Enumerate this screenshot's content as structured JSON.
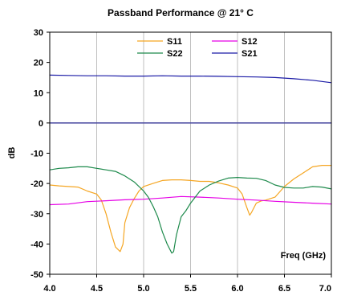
{
  "chart_data": {
    "type": "line",
    "title": "Passband Performance @ 21° C",
    "xlabel": "Freq (GHz)",
    "ylabel": "dB",
    "xlim": [
      4.0,
      7.0
    ],
    "ylim": [
      -50,
      30
    ],
    "x_ticks": [
      "4.0",
      "4.5",
      "5.0",
      "5.5",
      "6.0",
      "6.5",
      "7.0"
    ],
    "y_ticks": [
      "30",
      "20",
      "10",
      "0",
      "-10",
      "-20",
      "-30",
      "-40",
      "-50"
    ],
    "grid": "vertical",
    "legend_position": "top",
    "series": [
      {
        "name": "S11",
        "color": "#f5a623",
        "x": [
          4.0,
          4.1,
          4.2,
          4.3,
          4.4,
          4.5,
          4.55,
          4.6,
          4.65,
          4.7,
          4.75,
          4.78,
          4.8,
          4.85,
          4.9,
          4.95,
          5.0,
          5.1,
          5.2,
          5.3,
          5.4,
          5.5,
          5.6,
          5.7,
          5.8,
          5.9,
          6.0,
          6.05,
          6.1,
          6.13,
          6.15,
          6.2,
          6.25,
          6.3,
          6.4,
          6.5,
          6.6,
          6.7,
          6.8,
          6.9,
          7.0
        ],
        "values": [
          -20.5,
          -20.8,
          -21.0,
          -21.2,
          -22.5,
          -23.5,
          -25.5,
          -30,
          -36,
          -41,
          -42.5,
          -40,
          -33,
          -28,
          -25,
          -22.5,
          -21,
          -20,
          -19,
          -18.8,
          -18.8,
          -19,
          -19.3,
          -19.3,
          -19.8,
          -20.5,
          -21.5,
          -23.5,
          -28,
          -30.5,
          -29.5,
          -26.5,
          -25.8,
          -25.5,
          -24.5,
          -21,
          -18.5,
          -16.5,
          -14.5,
          -14.0,
          -14.0
        ]
      },
      {
        "name": "S12",
        "color": "#e600e6",
        "x": [
          4.0,
          4.2,
          4.4,
          4.6,
          4.8,
          5.0,
          5.2,
          5.4,
          5.6,
          5.8,
          6.0,
          6.2,
          6.4,
          6.6,
          6.8,
          7.0
        ],
        "values": [
          -27.0,
          -26.8,
          -26.0,
          -25.7,
          -25.4,
          -25.2,
          -24.8,
          -24.3,
          -24.5,
          -24.8,
          -25.2,
          -25.5,
          -25.9,
          -26.2,
          -26.5,
          -26.8
        ]
      },
      {
        "name": "S22",
        "color": "#1e8a4c",
        "x": [
          4.0,
          4.1,
          4.2,
          4.3,
          4.4,
          4.5,
          4.6,
          4.7,
          4.8,
          4.9,
          5.0,
          5.05,
          5.1,
          5.15,
          5.2,
          5.25,
          5.3,
          5.32,
          5.35,
          5.4,
          5.45,
          5.5,
          5.6,
          5.7,
          5.8,
          5.9,
          6.0,
          6.1,
          6.2,
          6.3,
          6.4,
          6.5,
          6.6,
          6.7,
          6.8,
          6.9,
          7.0
        ],
        "values": [
          -15.5,
          -15.0,
          -14.8,
          -14.5,
          -14.5,
          -15.0,
          -15.5,
          -16.0,
          -17.5,
          -19.5,
          -22.5,
          -24.5,
          -27.5,
          -31,
          -36,
          -40,
          -43,
          -42.5,
          -37,
          -31,
          -29,
          -26.5,
          -22.5,
          -20.5,
          -19.2,
          -18.2,
          -18.0,
          -18.2,
          -18.3,
          -19.0,
          -20.5,
          -21.3,
          -21.5,
          -21.5,
          -21.0,
          -21.2,
          -21.8
        ]
      },
      {
        "name": "S21",
        "color": "#1a1aa6",
        "x": [
          4.0,
          4.2,
          4.4,
          4.6,
          4.8,
          5.0,
          5.2,
          5.4,
          5.6,
          5.8,
          6.0,
          6.2,
          6.4,
          6.6,
          6.8,
          7.0
        ],
        "values": [
          15.8,
          15.7,
          15.6,
          15.6,
          15.5,
          15.5,
          15.6,
          15.5,
          15.5,
          15.4,
          15.3,
          15.2,
          15.0,
          14.6,
          14.1,
          13.3
        ]
      }
    ],
    "reference_line": {
      "y": 0,
      "color": "#4a4aa0"
    }
  }
}
